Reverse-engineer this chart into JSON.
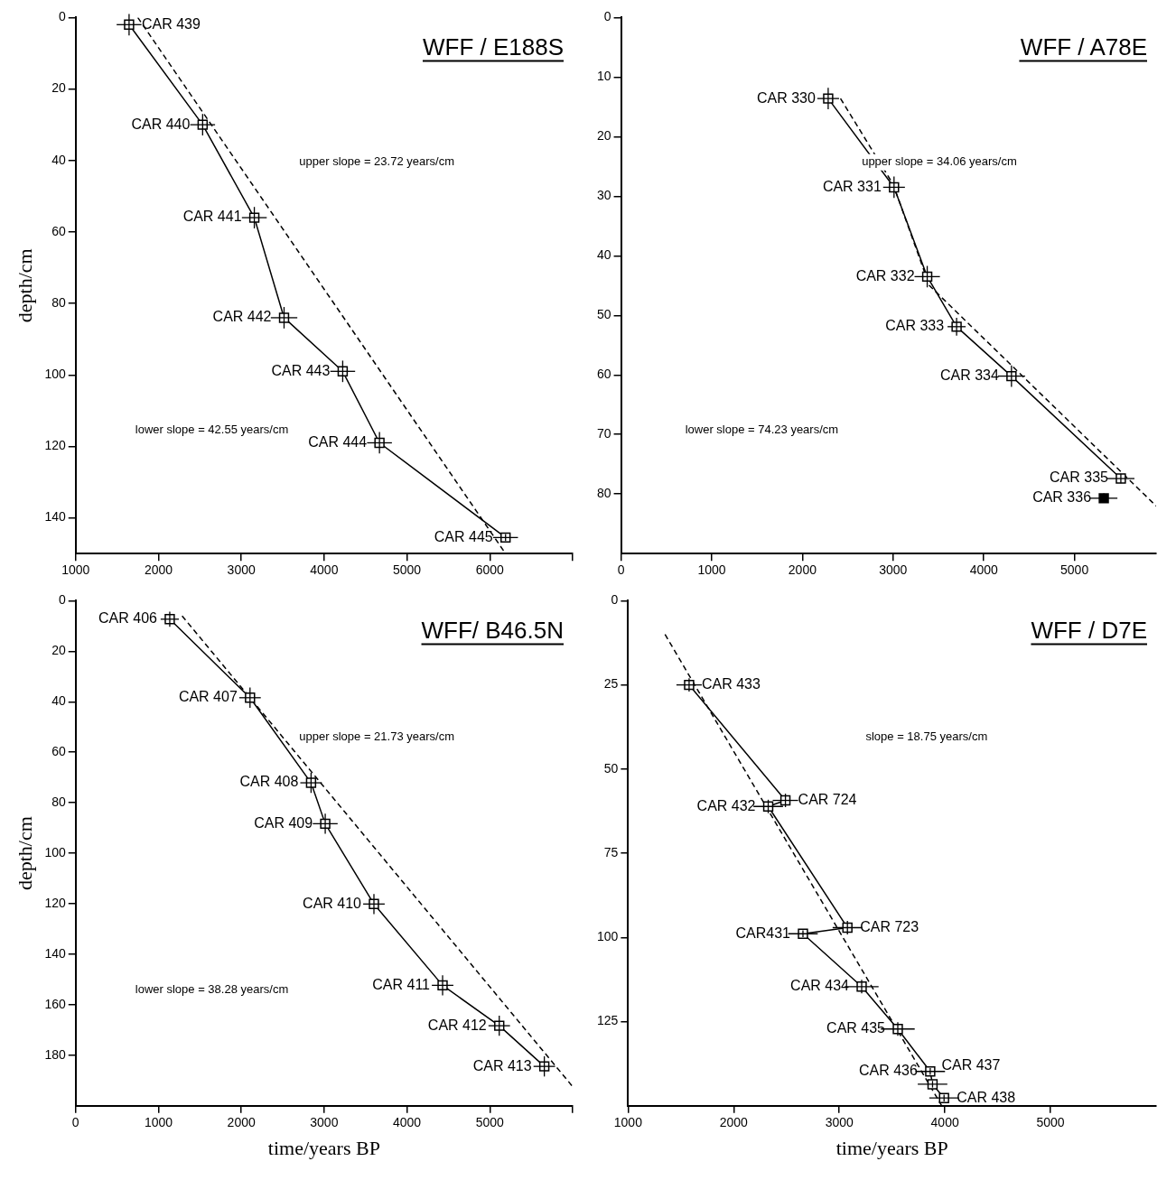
{
  "chart_data": [
    {
      "type": "line",
      "title": "WFF / E188S",
      "ylabel": "depth/cm",
      "xlim": [
        1000,
        7000
      ],
      "xticks": [
        1000,
        2000,
        3000,
        4000,
        5000,
        6000,
        {
          "value": 7000,
          "label": null
        }
      ],
      "ylim": [
        150,
        0
      ],
      "yticks": [
        0,
        20,
        40,
        60,
        80,
        100,
        120,
        140
      ],
      "grid": false,
      "legend": false,
      "marker": "square",
      "series": [
        {
          "type": "line",
          "color": "#000000",
          "x": [
            1645,
            2533,
            3157,
            3516,
            4224,
            4668,
            6190
          ],
          "values": [
            2,
            30,
            56,
            84,
            99,
            119,
            145.5
          ],
          "xerrors": [
            150,
            150,
            150,
            160,
            150,
            150,
            150
          ],
          "errors": [
            3,
            3,
            3,
            3,
            3,
            3,
            1
          ]
        },
        {
          "type": "line",
          "color": "#000000",
          "line_style": "dashed",
          "marker": "none",
          "x": [
            1750,
            6190
          ],
          "values": [
            0,
            150
          ]
        }
      ],
      "annotations": [
        {
          "text": "CAR 439",
          "x": 1645,
          "y": 2
        },
        {
          "text": "CAR 440",
          "x": 2533,
          "y": 30
        },
        {
          "text": "CAR 441",
          "x": 3157,
          "y": 56
        },
        {
          "text": "CAR 442",
          "x": 3516,
          "y": 84
        },
        {
          "text": "CAR 443",
          "x": 4224,
          "y": 99
        },
        {
          "text": "CAR 444",
          "x": 4668,
          "y": 119
        },
        {
          "text": "CAR 445",
          "x": 6190,
          "y": 145.5
        },
        "upper slope = 23.72 years/cm",
        "lower slope = 42.55 years/cm"
      ]
    },
    {
      "type": "line",
      "title": "WFF / A78E",
      "xlim": [
        0,
        5900
      ],
      "xticks": [
        0,
        1000,
        2000,
        3000,
        4000,
        5000
      ],
      "ylim": [
        90,
        0
      ],
      "yticks": [
        0,
        10,
        20,
        30,
        40,
        50,
        60,
        70,
        80
      ],
      "grid": false,
      "legend": false,
      "marker": "square",
      "series": [
        {
          "type": "line",
          "color": "#000000",
          "x": [
            2284,
            3010,
            3376,
            3700,
            4305,
            5511
          ],
          "values": [
            13.6,
            28.5,
            43.5,
            51.9,
            60.2,
            77.4
          ],
          "xerrors": [
            120,
            120,
            140,
            100,
            150,
            150
          ],
          "errors": [
            1.8,
            1.8,
            1.8,
            1.5,
            1.8,
            0.8
          ]
        },
        {
          "type": "scatter",
          "color": "#000000",
          "x": [
            5323
          ],
          "values": [
            80.7
          ],
          "xerrors": [
            150
          ],
          "errors": [
            0.8
          ]
        },
        {
          "type": "line",
          "color": "#000000",
          "line_style": "dashed",
          "marker": "none",
          "x": [
            2420,
            3000,
            3400,
            5900
          ],
          "values": [
            13.6,
            28,
            45,
            82
          ]
        }
      ],
      "annotations": [
        {
          "text": "CAR 330",
          "x": 2284,
          "y": 13.6
        },
        {
          "text": "CAR 331",
          "x": 3010,
          "y": 28.5
        },
        {
          "text": "CAR 332",
          "x": 3376,
          "y": 43.5
        },
        {
          "text": "CAR 333",
          "x": 3700,
          "y": 51.9
        },
        {
          "text": "CAR 334",
          "x": 4305,
          "y": 60.2
        },
        {
          "text": "CAR 335",
          "x": 5511,
          "y": 77.4
        },
        {
          "text": "CAR 336",
          "x": 5323,
          "y": 80.7
        },
        "upper slope = 34.06 years/cm",
        "lower slope = 74.23 years/cm"
      ]
    },
    {
      "type": "line",
      "title": "WFF/ B46.5N",
      "xlabel": "time/years BP",
      "ylabel": "depth/cm",
      "xlim": [
        0,
        6000
      ],
      "xticks": [
        0,
        1000,
        2000,
        3000,
        4000,
        5000,
        {
          "value": 6000,
          "label": null
        }
      ],
      "ylim": [
        200,
        0
      ],
      "yticks": [
        0,
        20,
        40,
        60,
        80,
        100,
        120,
        140,
        160,
        180
      ],
      "grid": false,
      "legend": false,
      "marker": "square",
      "series": [
        {
          "type": "line",
          "color": "#000000",
          "x": [
            1136,
            2105,
            2842,
            3013,
            3601,
            4430,
            5114,
            5658
          ],
          "values": [
            7.3,
            38.4,
            72.1,
            88.3,
            120.1,
            152.3,
            168.3,
            184.4
          ],
          "xerrors": [
            110,
            130,
            130,
            150,
            130,
            130,
            130,
            130
          ],
          "errors": [
            3,
            4,
            4,
            4,
            4,
            4,
            4,
            4
          ]
        },
        {
          "type": "line",
          "color": "#000000",
          "line_style": "dashed",
          "marker": "none",
          "x": [
            1285,
            5990
          ],
          "values": [
            6,
            192
          ]
        }
      ],
      "annotations": [
        {
          "text": "CAR 406",
          "x": 1136,
          "y": 7.3
        },
        {
          "text": "CAR 407",
          "x": 2105,
          "y": 38.4
        },
        {
          "text": "CAR 408",
          "x": 2842,
          "y": 72.1
        },
        {
          "text": "CAR 409",
          "x": 3013,
          "y": 88.3
        },
        {
          "text": "CAR 410",
          "x": 3601,
          "y": 120.1
        },
        {
          "text": "CAR 411",
          "x": 4430,
          "y": 152.3
        },
        {
          "text": "CAR 412",
          "x": 5114,
          "y": 168.3
        },
        {
          "text": "CAR 413",
          "x": 5658,
          "y": 184.4
        },
        "upper slope = 21.73 years/cm",
        "lower slope = 38.28 years/cm"
      ]
    },
    {
      "type": "line",
      "title": "WFF / D7E",
      "xlabel": "time/years BP",
      "xlim": [
        1000,
        6000
      ],
      "xticks": [
        1000,
        2000,
        3000,
        4000,
        5000
      ],
      "ylim": [
        150,
        0
      ],
      "yticks": [
        0,
        25,
        50,
        75,
        100,
        125
      ],
      "grid": false,
      "legend": false,
      "marker": "square",
      "series": [
        {
          "type": "line",
          "color": "#000000",
          "x": [
            1578,
            2490,
            2327,
            3077,
            2656,
            3212,
            3554,
            3861,
            3883,
            3992
          ],
          "values": [
            25,
            59.3,
            61.1,
            97.1,
            98.9,
            114.6,
            127.2,
            139.8,
            143.6,
            147.7
          ],
          "xerrors": [
            120,
            120,
            140,
            140,
            140,
            160,
            160,
            140,
            140,
            140
          ],
          "errors": [
            2,
            2,
            2,
            2,
            1,
            2,
            2,
            1,
            1,
            1
          ]
        },
        {
          "type": "line",
          "color": "#000000",
          "line_style": "dashed",
          "marker": "none",
          "x": [
            1350,
            3970
          ],
          "values": [
            10,
            150
          ]
        }
      ],
      "annotations": [
        {
          "text": "CAR 433",
          "x": 1578,
          "y": 25
        },
        {
          "text": "CAR 724",
          "x": 2490,
          "y": 59.3
        },
        {
          "text": "CAR 432",
          "x": 2327,
          "y": 61.1
        },
        {
          "text": "CAR 723",
          "x": 3077,
          "y": 97.1
        },
        {
          "text": "CAR431",
          "x": 2656,
          "y": 98.9
        },
        {
          "text": "CAR 434",
          "x": 3212,
          "y": 114.6
        },
        {
          "text": "CAR 435",
          "x": 3554,
          "y": 127.2
        },
        {
          "text": "CAR 436",
          "x": 3861,
          "y": 139.8
        },
        {
          "text": "CAR 437",
          "x": 3883,
          "y": 143.6
        },
        {
          "text": "CAR 438",
          "x": 3992,
          "y": 147.7
        },
        "slope = 18.75 years/cm"
      ]
    }
  ]
}
